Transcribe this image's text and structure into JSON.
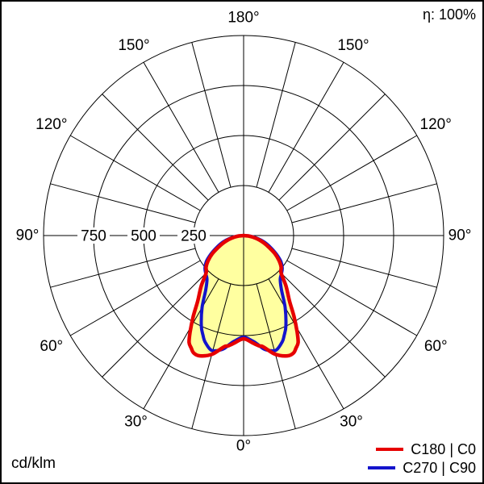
{
  "header": {
    "efficiency": "η: 100%"
  },
  "footer": {
    "unit": "cd/klm"
  },
  "legend": {
    "items": [
      {
        "label": "C180 | C0",
        "color": "#e60000"
      },
      {
        "label": "C270 | C90",
        "color": "#1414cc"
      }
    ]
  },
  "chart_data": {
    "type": "polar",
    "subtype": "luminous-intensity-distribution",
    "unit": "cd/klm",
    "efficiency": "η: 100%",
    "scale_max": 1000,
    "radial_ticks": [
      250,
      500,
      750,
      1000
    ],
    "radial_ticks_labeled": [
      750,
      500,
      250
    ],
    "radial_tick_labels": [
      "750",
      "500",
      "250"
    ],
    "angle_tick_degs": [
      180,
      150,
      120,
      90,
      60,
      30,
      0
    ],
    "angle_tick_labels": [
      "180°",
      "150°",
      "120°",
      "90°",
      "60°",
      "30°",
      "0°"
    ],
    "grid_angles": [
      15,
      30,
      45,
      60,
      75,
      105,
      120,
      135,
      150,
      165
    ],
    "grid_color": "#000000",
    "fill_color": "#ffffa0",
    "series": [
      {
        "name": "C180 | C0",
        "color": "#e60000",
        "symmetric": true,
        "points_gamma_cd": [
          [
            0,
            516
          ],
          [
            5,
            540
          ],
          [
            8,
            557
          ],
          [
            10,
            565
          ],
          [
            15,
            615
          ],
          [
            20,
            640
          ],
          [
            23,
            638
          ],
          [
            25,
            620
          ],
          [
            27,
            600
          ],
          [
            29,
            552
          ],
          [
            32,
            474
          ],
          [
            35,
            400
          ],
          [
            40,
            330
          ],
          [
            45,
            265
          ],
          [
            50,
            245
          ],
          [
            55,
            215
          ],
          [
            60,
            180
          ],
          [
            65,
            140
          ],
          [
            70,
            108
          ],
          [
            75,
            78
          ],
          [
            80,
            50
          ],
          [
            85,
            24
          ],
          [
            90,
            0
          ]
        ]
      },
      {
        "name": "C270 | C90",
        "color": "#1414cc",
        "symmetric": true,
        "points_gamma_cd": [
          [
            0,
            508
          ],
          [
            5,
            530
          ],
          [
            7,
            545
          ],
          [
            10,
            575
          ],
          [
            13,
            590
          ],
          [
            16,
            595
          ],
          [
            20,
            565
          ],
          [
            22,
            540
          ],
          [
            25,
            500
          ],
          [
            30,
            415
          ],
          [
            35,
            330
          ],
          [
            40,
            285
          ],
          [
            45,
            268
          ],
          [
            50,
            252
          ],
          [
            55,
            228
          ],
          [
            60,
            192
          ],
          [
            65,
            155
          ],
          [
            70,
            124
          ],
          [
            75,
            92
          ],
          [
            80,
            60
          ],
          [
            85,
            30
          ],
          [
            90,
            0
          ]
        ]
      }
    ]
  }
}
